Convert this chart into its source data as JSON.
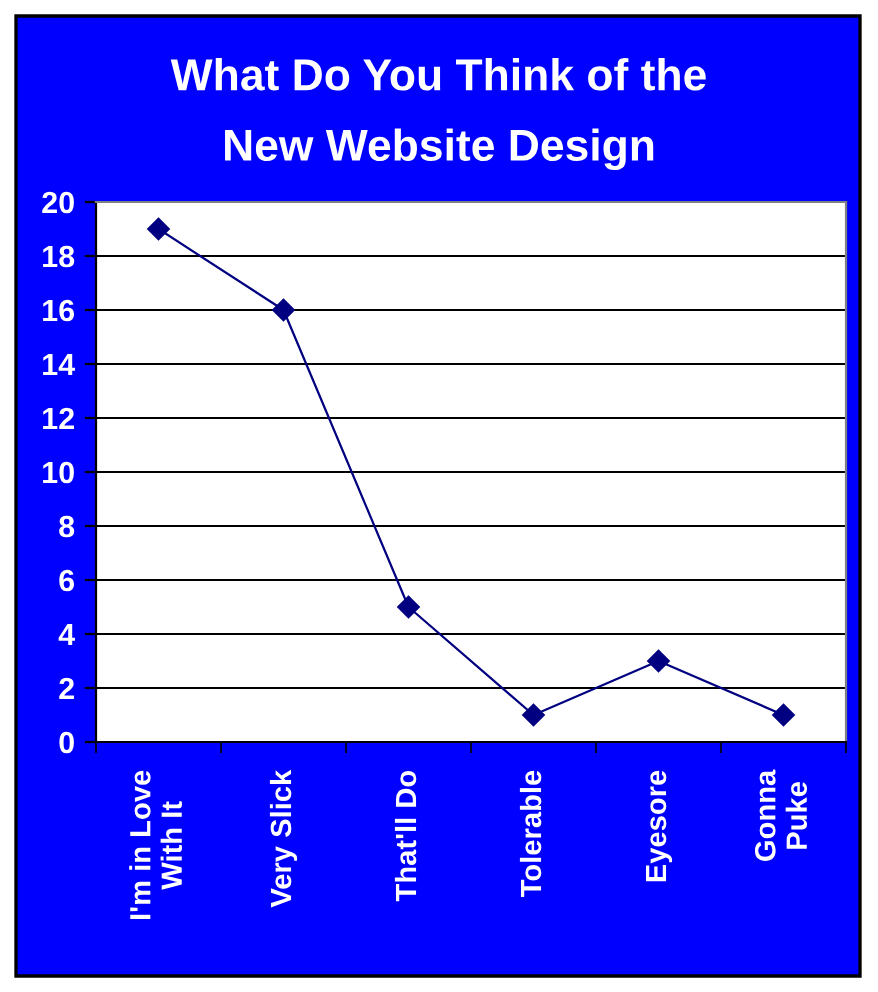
{
  "chart_data": {
    "type": "line",
    "title": "What Do You Think of the\nNew Website Design",
    "categories": [
      "I'm in Love\nWith It",
      "Very Slick",
      "That'll Do",
      "Tolerable",
      "Eyesore",
      "Gonna\nPuke"
    ],
    "series": [
      {
        "color": "#000080",
        "values": [
          19,
          16,
          5,
          1,
          3,
          1
        ]
      }
    ],
    "ylim": [
      0,
      20
    ],
    "yticks": [
      0,
      2,
      4,
      6,
      8,
      10,
      12,
      14,
      16,
      18,
      20
    ],
    "grid": "y",
    "marker": "diamond",
    "line_style": "solid"
  }
}
